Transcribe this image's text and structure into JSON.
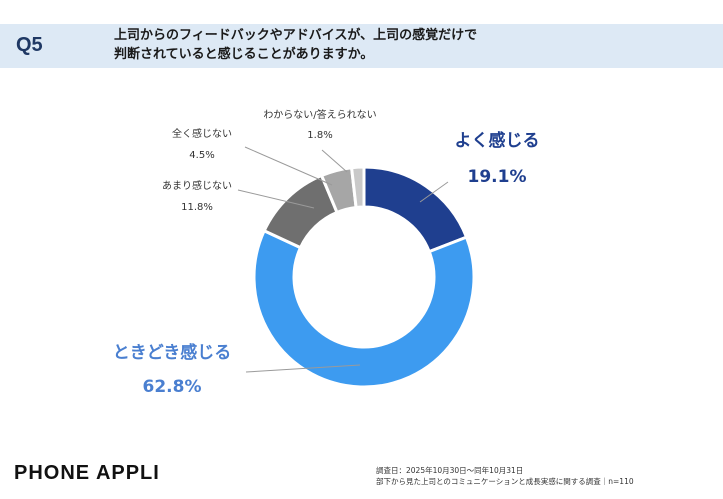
{
  "question": {
    "number": "Q5",
    "line1": "上司からのフィードバックやアドバイスが、上司の感覚だけで",
    "line2": "判断されていると感じることがありますか。"
  },
  "chart_data": {
    "type": "pie",
    "categories": [
      "よく感じる",
      "ときどき感じる",
      "あまり感じない",
      "全く感じない",
      "わからない/答えられない"
    ],
    "values": [
      19.1,
      62.8,
      11.8,
      4.5,
      1.8
    ],
    "value_labels": [
      "19.1%",
      "62.8%",
      "11.8%",
      "4.5%",
      "1.8%"
    ],
    "colors": [
      "#1f3f8f",
      "#3d9bf0",
      "#6f6f6f",
      "#a6a6a6",
      "#c9c9c9"
    ],
    "label_colors": [
      "#1f3f8f",
      "#4a7fd0",
      "#333333",
      "#333333",
      "#333333"
    ],
    "donut": true,
    "start": "12 o'clock",
    "direction": "clockwise"
  },
  "footer": {
    "brand": "PHONE APPLI",
    "survey_period": "調査日：2025年10月30日〜同年10月31日",
    "survey_title": "部下から見た上司とのコミュニケーションと成長実感に関する調査｜n=110"
  }
}
